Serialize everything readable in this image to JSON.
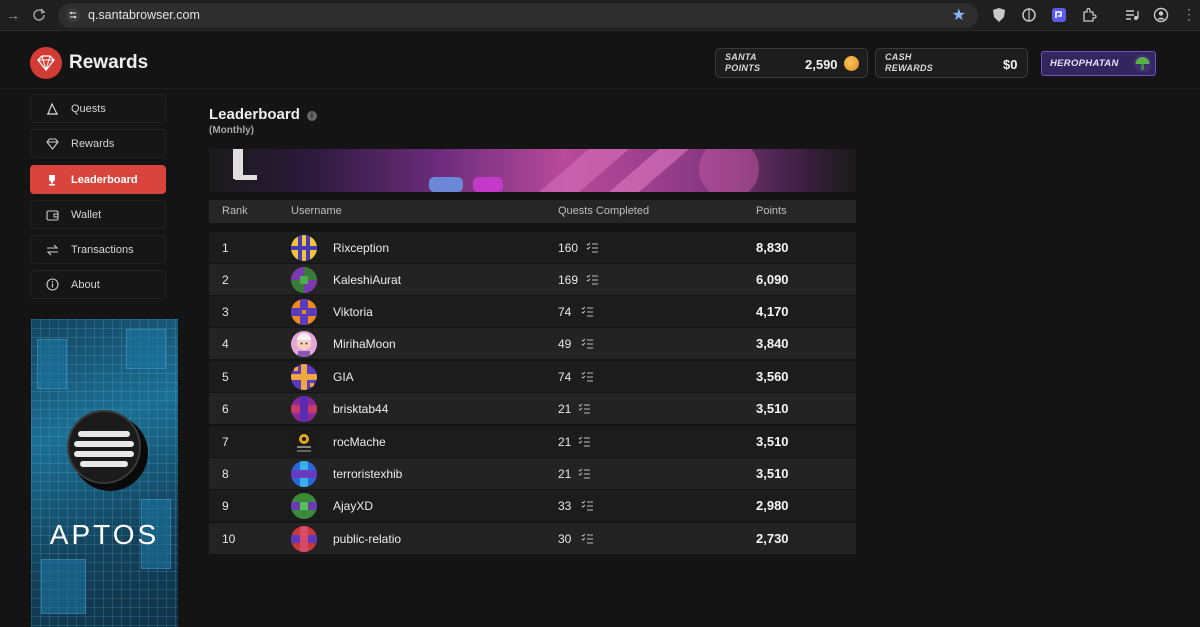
{
  "browser": {
    "url": "q.santabrowser.com"
  },
  "brand": {
    "title": "Rewards"
  },
  "header": {
    "santa_points_label_1": "SANTA",
    "santa_points_label_2": "POINTS",
    "santa_points_value": "2,590",
    "cash_label_1": "CASH",
    "cash_label_2": "REWARDS",
    "cash_value": "$0",
    "username": "HEROPHATAN"
  },
  "sidebar": {
    "items": [
      {
        "label": "Quests",
        "icon": "quests-icon"
      },
      {
        "label": "Rewards",
        "icon": "diamond-icon"
      },
      {
        "label": "Leaderboard",
        "icon": "trophy-icon"
      },
      {
        "label": "Wallet",
        "icon": "wallet-icon"
      },
      {
        "label": "Transactions",
        "icon": "transactions-icon"
      },
      {
        "label": "About",
        "icon": "info-icon"
      }
    ]
  },
  "ad": {
    "text": "APTOS"
  },
  "leaderboard": {
    "title": "Leaderboard",
    "subtitle": "(Monthly)",
    "columns": {
      "rank": "Rank",
      "username": "Username",
      "quests": "Quests Completed",
      "points": "Points"
    },
    "rows": [
      {
        "rank": "1",
        "username": "Rixception",
        "quests": "160",
        "points": "8,830"
      },
      {
        "rank": "2",
        "username": "KaleshiAurat",
        "quests": "169",
        "points": "6,090"
      },
      {
        "rank": "3",
        "username": "Viktoria",
        "quests": "74",
        "points": "4,170"
      },
      {
        "rank": "4",
        "username": "MirihaMoon",
        "quests": "49",
        "points": "3,840"
      },
      {
        "rank": "5",
        "username": "GIA",
        "quests": "74",
        "points": "3,560"
      },
      {
        "rank": "6",
        "username": "brisktab44",
        "quests": "21",
        "points": "3,510"
      },
      {
        "rank": "7",
        "username": "rocMache",
        "quests": "21",
        "points": "3,510"
      },
      {
        "rank": "8",
        "username": "terroristexhib",
        "quests": "21",
        "points": "3,510"
      },
      {
        "rank": "9",
        "username": "AjayXD",
        "quests": "33",
        "points": "2,980"
      },
      {
        "rank": "10",
        "username": "public-relatio",
        "quests": "30",
        "points": "2,730"
      }
    ]
  },
  "colors": {
    "accent": "#d9443c",
    "background": "#141414",
    "user_pill": "#33255e"
  }
}
